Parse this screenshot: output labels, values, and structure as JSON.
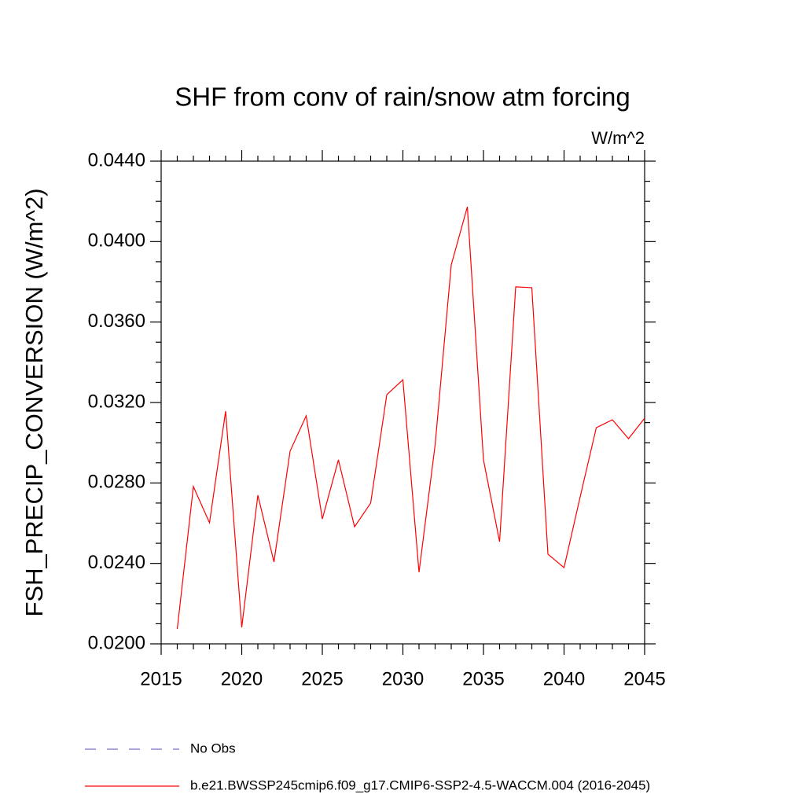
{
  "chart_data": {
    "type": "line",
    "title": "SHF from conv of rain/snow atm forcing",
    "units": "W/m^2",
    "y_label": "FSH_PRECIP_CONVERSION  (W/m^2)",
    "x": [
      2016,
      2017,
      2018,
      2019,
      2020,
      2021,
      2022,
      2023,
      2024,
      2025,
      2026,
      2027,
      2028,
      2029,
      2030,
      2031,
      2032,
      2033,
      2034,
      2035,
      2036,
      2037,
      2038,
      2039,
      2040,
      2041,
      2042,
      2043,
      2044,
      2045
    ],
    "series": [
      {
        "name": "No Obs",
        "color": "#7b6fc4",
        "dashed": true,
        "values": [
          null,
          null,
          null,
          null,
          null,
          null,
          null,
          null,
          null,
          null,
          null,
          null,
          null,
          null,
          null,
          null,
          null,
          null,
          null,
          null,
          null,
          null,
          null,
          null,
          null,
          null,
          null,
          null,
          null,
          null
        ]
      },
      {
        "name": "b.e21.BWSSP245cmip6.f09_g17.CMIP6-SSP2-4.5-WACCM.004 (2016-2045)",
        "color": "#ff0000",
        "dashed": false,
        "values": [
          0.02074,
          0.02782,
          0.02602,
          0.03157,
          0.02082,
          0.02739,
          0.02407,
          0.02958,
          0.03134,
          0.02621,
          0.02915,
          0.02582,
          0.027,
          0.03239,
          0.03313,
          0.02356,
          0.02989,
          0.03884,
          0.04173,
          0.02915,
          0.02508,
          0.03775,
          0.03771,
          0.02446,
          0.02379,
          0.02731,
          0.03075,
          0.03114,
          0.0302,
          0.03122
        ]
      }
    ],
    "xlim": [
      2015,
      2045
    ],
    "xticks": [
      2015,
      2020,
      2025,
      2030,
      2035,
      2040,
      2045
    ],
    "xminorticks": [
      2016,
      2017,
      2018,
      2019,
      2021,
      2022,
      2023,
      2024,
      2026,
      2027,
      2028,
      2029,
      2031,
      2032,
      2033,
      2034,
      2036,
      2037,
      2038,
      2039,
      2041,
      2042,
      2043,
      2044
    ],
    "ylim": [
      0.02,
      0.044
    ],
    "yticks": [
      {
        "value": 0.02,
        "label": "0.0200"
      },
      {
        "value": 0.024,
        "label": "0.0240"
      },
      {
        "value": 0.028,
        "label": "0.0280"
      },
      {
        "value": 0.032,
        "label": "0.0320"
      },
      {
        "value": 0.036,
        "label": "0.0360"
      },
      {
        "value": 0.04,
        "label": "0.0400"
      },
      {
        "value": 0.044,
        "label": "0.0440"
      }
    ],
    "yminorticks": [
      0.021,
      0.022,
      0.023,
      0.025,
      0.026,
      0.027,
      0.029,
      0.03,
      0.031,
      0.033,
      0.034,
      0.035,
      0.037,
      0.038,
      0.039,
      0.041,
      0.042,
      0.043
    ],
    "grid": false
  }
}
